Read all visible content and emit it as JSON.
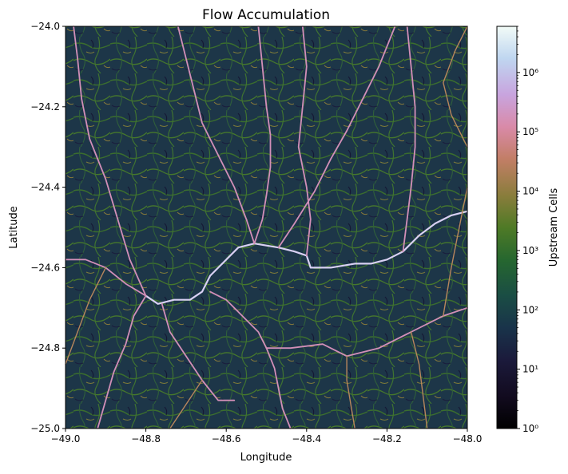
{
  "chart_data": {
    "type": "heatmap",
    "title": "Flow Accumulation",
    "xlabel": "Longitude",
    "ylabel": "Latitude",
    "xlim": [
      -49.0,
      -48.0
    ],
    "ylim": [
      -25.0,
      -24.0
    ],
    "x_ticks": [
      -49.0,
      -48.8,
      -48.6,
      -48.4,
      -48.2,
      -48.0
    ],
    "x_tick_labels": [
      "−49.0",
      "−48.8",
      "−48.6",
      "−48.4",
      "−48.2",
      "−48.0"
    ],
    "y_ticks": [
      -25.0,
      -24.8,
      -24.6,
      -24.4,
      -24.2,
      -24.0
    ],
    "y_tick_labels": [
      "−25.0",
      "−24.8",
      "−24.6",
      "−24.4",
      "−24.2",
      "−24.0"
    ],
    "colorbar": {
      "label": "Upstream Cells",
      "scale": "log",
      "range": [
        1,
        6000000
      ],
      "colormap": "cubehelix",
      "tick_exponents": [
        0,
        1,
        2,
        3,
        4,
        5,
        6
      ]
    },
    "grid": false,
    "main_rivers": [
      {
        "class": "large",
        "points": [
          [
            -48.61,
            -24.59
          ],
          [
            -48.57,
            -24.55
          ],
          [
            -48.53,
            -24.54
          ],
          [
            -48.47,
            -24.55
          ],
          [
            -48.43,
            -24.56
          ],
          [
            -48.4,
            -24.57
          ],
          [
            -48.39,
            -24.6
          ],
          [
            -48.34,
            -24.6
          ],
          [
            -48.28,
            -24.59
          ],
          [
            -48.24,
            -24.59
          ],
          [
            -48.2,
            -24.58
          ],
          [
            -48.16,
            -24.56
          ],
          [
            -48.12,
            -24.52
          ],
          [
            -48.08,
            -24.49
          ],
          [
            -48.04,
            -24.47
          ],
          [
            -48.0,
            -24.46
          ]
        ]
      },
      {
        "class": "large",
        "points": [
          [
            -48.61,
            -24.59
          ],
          [
            -48.64,
            -24.62
          ],
          [
            -48.66,
            -24.66
          ],
          [
            -48.69,
            -24.68
          ],
          [
            -48.73,
            -24.68
          ],
          [
            -48.77,
            -24.69
          ],
          [
            -48.8,
            -24.67
          ]
        ]
      },
      {
        "class": "medium",
        "points": [
          [
            -48.8,
            -24.67
          ],
          [
            -48.85,
            -24.64
          ],
          [
            -48.9,
            -24.6
          ],
          [
            -48.95,
            -24.58
          ],
          [
            -49.0,
            -24.58
          ]
        ]
      },
      {
        "class": "medium",
        "points": [
          [
            -48.64,
            -24.66
          ],
          [
            -48.6,
            -24.68
          ],
          [
            -48.56,
            -24.72
          ],
          [
            -48.52,
            -24.76
          ],
          [
            -48.5,
            -24.8
          ]
        ]
      },
      {
        "class": "medium",
        "points": [
          [
            -48.5,
            -24.8
          ],
          [
            -48.48,
            -24.85
          ],
          [
            -48.47,
            -24.9
          ],
          [
            -48.46,
            -24.95
          ],
          [
            -48.44,
            -25.0
          ]
        ]
      },
      {
        "class": "medium",
        "points": [
          [
            -48.5,
            -24.8
          ],
          [
            -48.44,
            -24.8
          ],
          [
            -48.36,
            -24.79
          ],
          [
            -48.3,
            -24.82
          ],
          [
            -48.22,
            -24.8
          ],
          [
            -48.14,
            -24.76
          ],
          [
            -48.06,
            -24.72
          ],
          [
            -48.0,
            -24.7
          ]
        ]
      },
      {
        "class": "medium",
        "points": [
          [
            -48.76,
            -24.69
          ],
          [
            -48.74,
            -24.76
          ],
          [
            -48.7,
            -24.82
          ],
          [
            -48.66,
            -24.88
          ],
          [
            -48.62,
            -24.93
          ],
          [
            -48.58,
            -24.93
          ]
        ]
      },
      {
        "class": "medium",
        "points": [
          [
            -48.8,
            -24.67
          ],
          [
            -48.83,
            -24.72
          ],
          [
            -48.85,
            -24.79
          ],
          [
            -48.88,
            -24.86
          ],
          [
            -48.9,
            -24.93
          ],
          [
            -48.92,
            -25.0
          ]
        ]
      },
      {
        "class": "medium",
        "points": [
          [
            -48.53,
            -24.54
          ],
          [
            -48.51,
            -24.48
          ],
          [
            -48.5,
            -24.42
          ],
          [
            -48.49,
            -24.35
          ],
          [
            -48.49,
            -24.27
          ],
          [
            -48.5,
            -24.2
          ],
          [
            -48.51,
            -24.1
          ],
          [
            -48.52,
            -24.0
          ]
        ]
      },
      {
        "class": "medium",
        "points": [
          [
            -48.53,
            -24.54
          ],
          [
            -48.55,
            -24.48
          ],
          [
            -48.58,
            -24.4
          ],
          [
            -48.62,
            -24.32
          ],
          [
            -48.66,
            -24.24
          ],
          [
            -48.68,
            -24.16
          ],
          [
            -48.7,
            -24.08
          ],
          [
            -48.72,
            -24.0
          ]
        ]
      },
      {
        "class": "medium",
        "points": [
          [
            -48.47,
            -24.55
          ],
          [
            -48.43,
            -24.49
          ],
          [
            -48.38,
            -24.41
          ],
          [
            -48.34,
            -24.33
          ],
          [
            -48.3,
            -24.26
          ],
          [
            -48.26,
            -24.18
          ],
          [
            -48.22,
            -24.1
          ],
          [
            -48.18,
            -24.0
          ]
        ]
      },
      {
        "class": "medium",
        "points": [
          [
            -48.16,
            -24.56
          ],
          [
            -48.15,
            -24.48
          ],
          [
            -48.14,
            -24.4
          ],
          [
            -48.13,
            -24.3
          ],
          [
            -48.13,
            -24.2
          ],
          [
            -48.14,
            -24.1
          ],
          [
            -48.15,
            -24.0
          ]
        ]
      },
      {
        "class": "medium",
        "points": [
          [
            -48.8,
            -24.67
          ],
          [
            -48.84,
            -24.58
          ],
          [
            -48.87,
            -24.48
          ],
          [
            -48.9,
            -24.38
          ],
          [
            -48.94,
            -24.28
          ],
          [
            -48.96,
            -24.18
          ],
          [
            -48.97,
            -24.08
          ],
          [
            -48.98,
            -24.0
          ]
        ]
      },
      {
        "class": "medium",
        "points": [
          [
            -48.4,
            -24.57
          ],
          [
            -48.39,
            -24.48
          ],
          [
            -48.4,
            -24.4
          ],
          [
            -48.42,
            -24.3
          ],
          [
            -48.41,
            -24.2
          ],
          [
            -48.4,
            -24.1
          ],
          [
            -48.41,
            -24.0
          ]
        ]
      },
      {
        "class": "small",
        "points": [
          [
            -48.3,
            -24.82
          ],
          [
            -48.3,
            -24.88
          ],
          [
            -48.29,
            -24.94
          ],
          [
            -48.28,
            -25.0
          ]
        ]
      },
      {
        "class": "small",
        "points": [
          [
            -48.14,
            -24.76
          ],
          [
            -48.12,
            -24.84
          ],
          [
            -48.11,
            -24.92
          ],
          [
            -48.1,
            -25.0
          ]
        ]
      },
      {
        "class": "small",
        "points": [
          [
            -48.06,
            -24.72
          ],
          [
            -48.04,
            -24.6
          ],
          [
            -48.02,
            -24.5
          ],
          [
            -48.0,
            -24.4
          ]
        ]
      },
      {
        "class": "small",
        "points": [
          [
            -48.0,
            -24.3
          ],
          [
            -48.04,
            -24.22
          ],
          [
            -48.06,
            -24.14
          ],
          [
            -48.03,
            -24.06
          ],
          [
            -48.0,
            -24.0
          ]
        ]
      },
      {
        "class": "small",
        "points": [
          [
            -48.9,
            -24.6
          ],
          [
            -48.94,
            -24.68
          ],
          [
            -48.97,
            -24.76
          ],
          [
            -49.0,
            -24.84
          ]
        ]
      },
      {
        "class": "small",
        "points": [
          [
            -48.66,
            -24.88
          ],
          [
            -48.7,
            -24.94
          ],
          [
            -48.74,
            -25.0
          ]
        ]
      }
    ]
  }
}
